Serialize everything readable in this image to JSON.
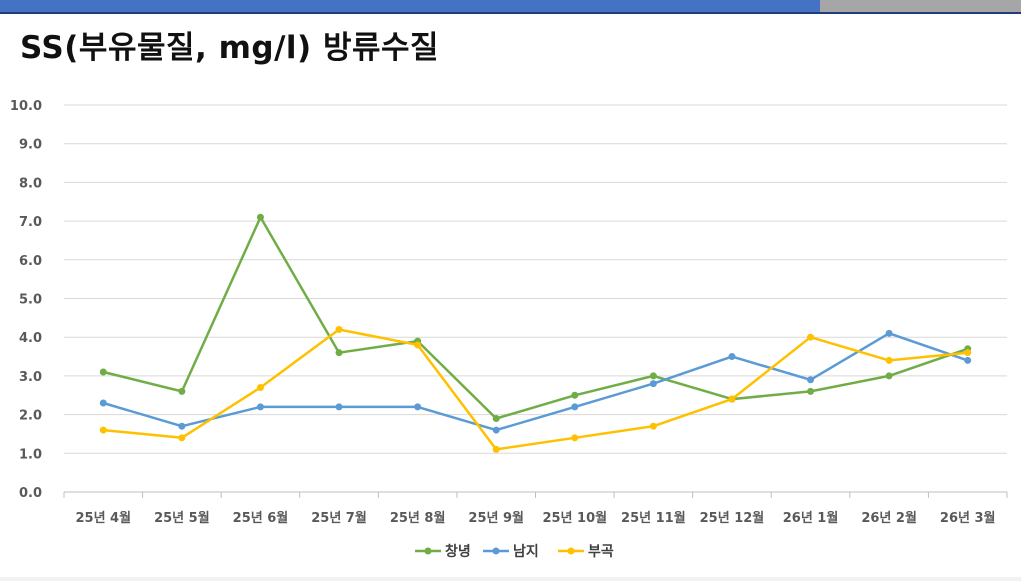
{
  "slide": {
    "title": "SS(부유물질, mg/l) 방류수질"
  },
  "theme": {
    "topbar_color": "#4472c4",
    "topbar_right_color": "#a6a6a6",
    "gridline_color": "#d9d9d9",
    "axis_text_color": "#595959"
  },
  "chart_data": {
    "type": "line",
    "title": "",
    "xlabel": "",
    "ylabel": "",
    "categories": [
      "25년 4월",
      "25년 5월",
      "25년 6월",
      "25년 7월",
      "25년 8월",
      "25년 9월",
      "25년 10월",
      "25년 11월",
      "25년 12월",
      "26년 1월",
      "26년 2월",
      "26년 3월"
    ],
    "ylim": [
      0,
      10
    ],
    "ytick_step": 1,
    "ytick_labels": [
      "0.0",
      "1.0",
      "2.0",
      "3.0",
      "4.0",
      "5.0",
      "6.0",
      "7.0",
      "8.0",
      "9.0",
      "10.0"
    ],
    "grid": true,
    "legend_position": "bottom",
    "series": [
      {
        "name": "창녕",
        "color": "#70ad47",
        "values": [
          3.1,
          2.6,
          7.1,
          3.6,
          3.9,
          1.9,
          2.5,
          3.0,
          2.4,
          2.6,
          3.0,
          3.7
        ]
      },
      {
        "name": "남지",
        "color": "#5b9bd5",
        "values": [
          2.3,
          1.7,
          2.2,
          2.2,
          2.2,
          1.6,
          2.2,
          2.8,
          3.5,
          2.9,
          4.1,
          3.4
        ]
      },
      {
        "name": "부곡",
        "color": "#ffc000",
        "values": [
          1.6,
          1.4,
          2.7,
          4.2,
          3.8,
          1.1,
          1.4,
          1.7,
          2.4,
          4.0,
          3.4,
          3.6
        ]
      }
    ]
  }
}
